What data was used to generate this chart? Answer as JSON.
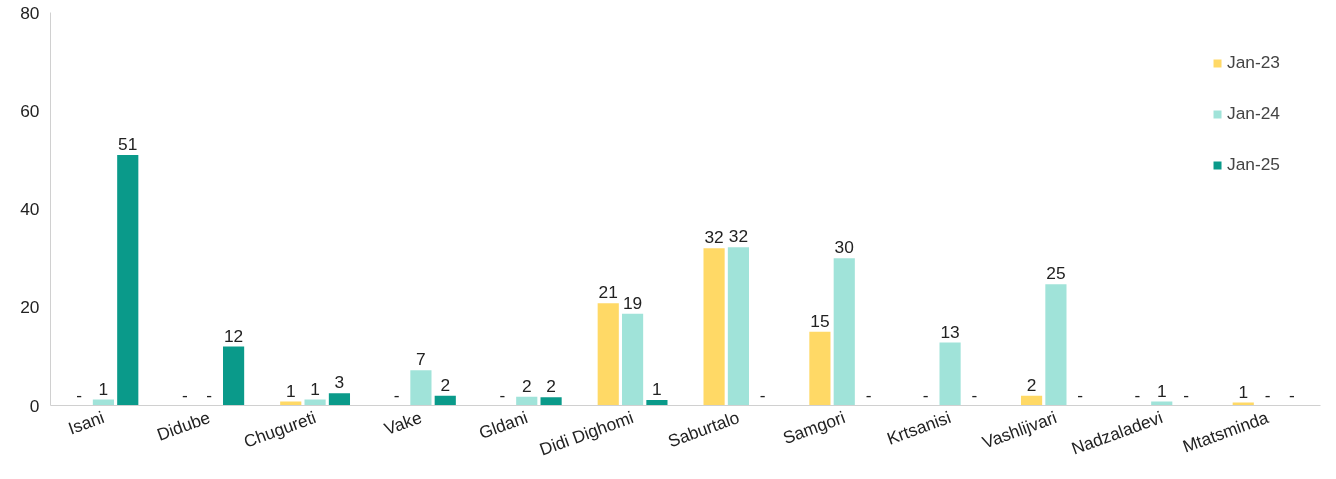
{
  "chart_data": {
    "type": "bar",
    "categories": [
      "Isani",
      "Didube",
      "Chugureti",
      "Vake",
      "Gldani",
      "Didi Dighomi",
      "Saburtalo",
      "Samgori",
      "Krtsanisi",
      "Vashlijvari",
      "Nadzaladevi",
      "Mtatsminda"
    ],
    "series": [
      {
        "name": "Jan-23",
        "color": "#ffd966",
        "values": [
          null,
          null,
          0.8,
          null,
          null,
          20.8,
          32,
          15,
          null,
          2,
          null,
          0.6
        ],
        "value_labels": [
          "-",
          "-",
          "1",
          "-",
          "-",
          "21",
          "32",
          "15",
          "-",
          "2",
          "-",
          "1"
        ]
      },
      {
        "name": "Jan-24",
        "color": "#a0e3d9",
        "values": [
          1.2,
          null,
          1.2,
          7.2,
          1.8,
          18.7,
          32.2,
          30,
          12.8,
          24.7,
          0.8,
          null
        ],
        "value_labels": [
          "1",
          "-",
          "1",
          "7",
          "2",
          "19",
          "32",
          "30",
          "13",
          "25",
          "1",
          "-"
        ]
      },
      {
        "name": "Jan-25",
        "color": "#0a9a8a",
        "values": [
          51,
          12,
          2.5,
          2,
          1.7,
          1.1,
          null,
          null,
          null,
          null,
          null,
          null
        ],
        "value_labels": [
          "51",
          "12",
          "3",
          "2",
          "2",
          "1",
          "-",
          "-",
          "-",
          "-",
          "-",
          "-"
        ]
      }
    ],
    "ylim": [
      0,
      80
    ],
    "yticks": [
      0,
      20,
      40,
      60,
      80
    ],
    "grid": false,
    "legend": "top right"
  }
}
